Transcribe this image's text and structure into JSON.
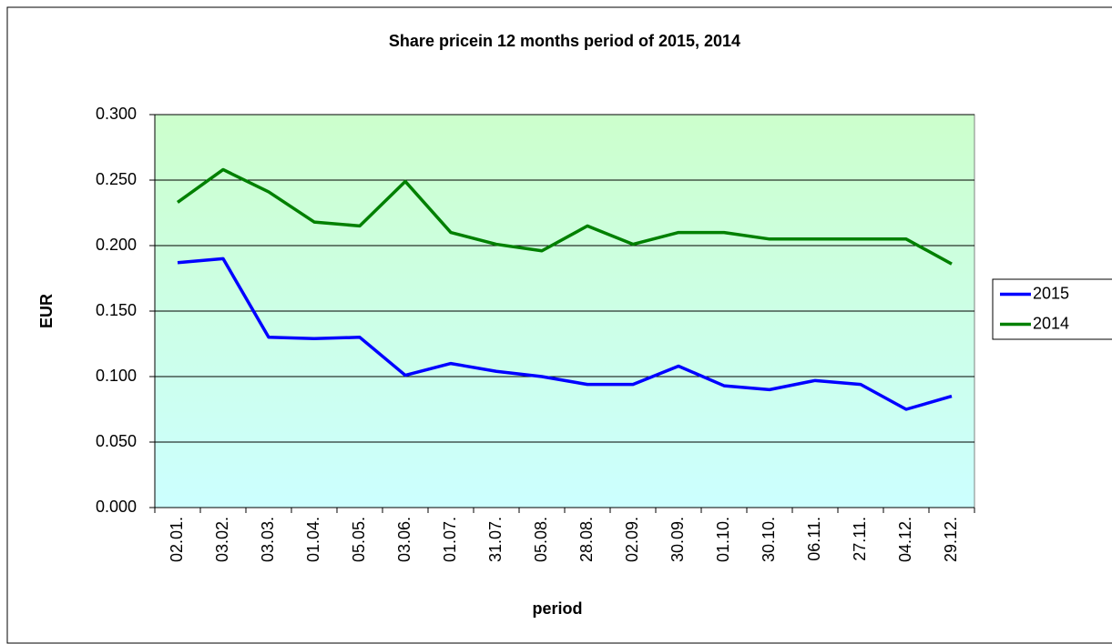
{
  "chart_data": {
    "type": "line",
    "title": "Share pricein 12 months period of 2015, 2014",
    "x_label": "period",
    "y_label": "EUR",
    "categories": [
      "02.01.",
      "03.02.",
      "03.03.",
      "01.04.",
      "05.05.",
      "03.06.",
      "01.07.",
      "31.07.",
      "05.08.",
      "28.08.",
      "02.09.",
      "30.09.",
      "01.10.",
      "30.10.",
      "06.11.",
      "27.11.",
      "04.12.",
      "29.12."
    ],
    "series": [
      {
        "name": "2015",
        "color": "#0000ff",
        "values": [
          0.187,
          0.19,
          0.13,
          0.129,
          0.13,
          0.101,
          0.11,
          0.104,
          0.1,
          0.094,
          0.094,
          0.108,
          0.093,
          0.09,
          0.097,
          0.094,
          0.075,
          0.085
        ]
      },
      {
        "name": "2014",
        "color": "#008000",
        "values": [
          0.233,
          0.258,
          0.241,
          0.218,
          0.215,
          0.249,
          0.21,
          0.201,
          0.196,
          0.215,
          0.201,
          0.21,
          0.21,
          0.205,
          0.205,
          0.205,
          0.205,
          0.186
        ]
      }
    ],
    "ylim": [
      0,
      0.3
    ],
    "yticks": [
      {
        "value": 0,
        "label": "0.000"
      },
      {
        "value": 0.05,
        "label": "0.050"
      },
      {
        "value": 0.1,
        "label": "0.100"
      },
      {
        "value": 0.15,
        "label": "0.150"
      },
      {
        "value": 0.2,
        "label": "0.200"
      },
      {
        "value": 0.25,
        "label": "0.250"
      },
      {
        "value": 0.3,
        "label": "0.300"
      }
    ],
    "grid": true,
    "legend": "right"
  }
}
